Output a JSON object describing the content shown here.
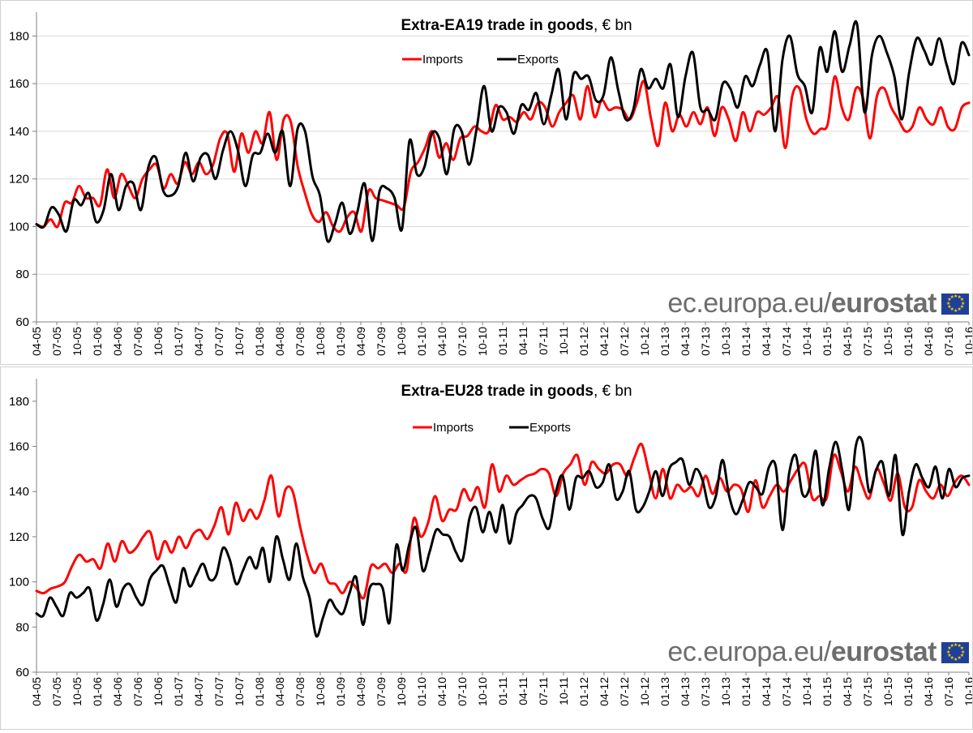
{
  "brand": {
    "plain": "ec.europa.eu/",
    "bold": "eurostat"
  },
  "chart_data": [
    {
      "type": "line",
      "title_bold": "Extra-EA19 trade in goods",
      "title_rest": ", € bn",
      "ylim": [
        60,
        190
      ],
      "yticks": [
        60,
        80,
        100,
        120,
        140,
        160,
        180
      ],
      "grid": true,
      "legend": "top-center",
      "x_tick_labels": [
        "04-05",
        "07-05",
        "10-05",
        "01-06",
        "04-06",
        "07-06",
        "10-06",
        "01-07",
        "04-07",
        "07-07",
        "10-07",
        "01-08",
        "04-08",
        "07-08",
        "10-08",
        "01-09",
        "04-09",
        "07-09",
        "10-09",
        "01-10",
        "04-10",
        "07-10",
        "10-10",
        "01-11",
        "04-11",
        "07-11",
        "10-11",
        "01-12",
        "04-12",
        "07-12",
        "10-12",
        "01-13",
        "04-13",
        "07-13",
        "10-13",
        "01-14",
        "04-14",
        "07-14",
        "10-14",
        "01-15",
        "04-15",
        "07-15",
        "10-15",
        "01-16",
        "04-16",
        "07-16",
        "10-16"
      ],
      "series": [
        {
          "name": "Imports",
          "color": "#ff0000",
          "values": [
            101,
            100,
            103,
            100,
            110,
            110,
            117,
            112,
            112,
            109,
            124,
            112,
            122,
            117,
            112,
            120,
            124,
            126,
            116,
            122,
            118,
            127,
            122,
            127,
            122,
            126,
            137,
            139,
            123,
            139,
            131,
            140,
            135,
            148,
            128,
            145,
            144,
            125,
            114,
            105,
            102,
            106,
            100,
            98,
            104,
            106,
            98,
            115,
            112,
            111,
            110,
            109,
            108,
            123,
            127,
            133,
            140,
            129,
            135,
            128,
            137,
            138,
            142,
            140,
            140,
            151,
            145,
            146,
            144,
            148,
            145,
            152,
            150,
            142,
            148,
            152,
            155,
            145,
            159,
            146,
            153,
            149,
            150,
            149,
            145,
            152,
            161,
            145,
            134,
            152,
            140,
            147,
            142,
            148,
            143,
            150,
            138,
            150,
            145,
            136,
            148,
            140,
            148,
            147,
            150,
            154,
            133,
            155,
            158,
            145,
            139,
            141,
            143,
            163,
            150,
            145,
            158,
            154,
            137,
            155,
            158,
            150,
            145,
            140,
            142,
            150,
            145,
            143,
            150,
            142,
            141,
            150,
            152
          ]
        },
        {
          "name": "Exports",
          "color": "#000000",
          "values": [
            101,
            100,
            108,
            105,
            98,
            111,
            109,
            114,
            102,
            107,
            122,
            107,
            117,
            118,
            107,
            125,
            129,
            115,
            113,
            117,
            131,
            119,
            129,
            130,
            120,
            132,
            140,
            132,
            117,
            130,
            131,
            139,
            131,
            140,
            117,
            141,
            140,
            121,
            113,
            94,
            101,
            110,
            97,
            106,
            118,
            94,
            115,
            116,
            112,
            99,
            136,
            122,
            125,
            139,
            137,
            122,
            141,
            140,
            126,
            141,
            159,
            140,
            150,
            148,
            139,
            151,
            149,
            156,
            143,
            155,
            166,
            145,
            164,
            162,
            163,
            153,
            155,
            171,
            157,
            145,
            149,
            166,
            158,
            162,
            158,
            168,
            146,
            163,
            173,
            150,
            149,
            145,
            160,
            158,
            150,
            163,
            159,
            168,
            173,
            140,
            170,
            180,
            164,
            159,
            148,
            175,
            165,
            182,
            165,
            176,
            185,
            148,
            172,
            180,
            173,
            163,
            145,
            165,
            179,
            174,
            168,
            179,
            168,
            160,
            177,
            172
          ]
        }
      ]
    },
    {
      "type": "line",
      "title_bold": "Extra-EU28 trade in goods",
      "title_rest": ", € bn",
      "ylim": [
        60,
        190
      ],
      "yticks": [
        60,
        80,
        100,
        120,
        140,
        160,
        180
      ],
      "grid": false,
      "legend": "top-center",
      "x_tick_labels": [
        "04-05",
        "07-05",
        "10-05",
        "01-06",
        "04-06",
        "07-06",
        "10-06",
        "01-07",
        "04-07",
        "07-07",
        "10-07",
        "01-08",
        "04-08",
        "07-08",
        "10-08",
        "01-09",
        "04-09",
        "07-09",
        "10-09",
        "01-10",
        "04-10",
        "07-10",
        "10-10",
        "01-11",
        "04-11",
        "07-11",
        "10-11",
        "01-12",
        "04-12",
        "07-12",
        "10-12",
        "01-13",
        "04-13",
        "07-13",
        "10-13",
        "01-14",
        "04-14",
        "07-14",
        "10-14",
        "01-15",
        "04-15",
        "07-15",
        "10-15",
        "01-16",
        "04-16",
        "07-16",
        "10-16"
      ],
      "series": [
        {
          "name": "Imports",
          "color": "#ff0000",
          "values": [
            96,
            95,
            97,
            98,
            100,
            107,
            112,
            109,
            110,
            106,
            117,
            109,
            118,
            113,
            115,
            120,
            122,
            110,
            118,
            113,
            120,
            115,
            121,
            123,
            119,
            125,
            133,
            121,
            135,
            127,
            132,
            128,
            136,
            147,
            129,
            141,
            140,
            125,
            112,
            104,
            108,
            100,
            99,
            95,
            100,
            97,
            93,
            107,
            106,
            108,
            104,
            108,
            105,
            128,
            120,
            126,
            138,
            127,
            132,
            132,
            141,
            136,
            142,
            133,
            152,
            140,
            147,
            143,
            145,
            147,
            148,
            150,
            148,
            138,
            148,
            152,
            156,
            143,
            153,
            150,
            148,
            152,
            152,
            147,
            155,
            161,
            149,
            137,
            150,
            137,
            143,
            140,
            142,
            138,
            147,
            139,
            146,
            140,
            143,
            141,
            131,
            145,
            133,
            138,
            143,
            140,
            145,
            150,
            152,
            137,
            138,
            137,
            156,
            149,
            140,
            151,
            143,
            137,
            150,
            144,
            136,
            148,
            133,
            133,
            145,
            140,
            137,
            143,
            138,
            144,
            147,
            143
          ]
        },
        {
          "name": "Exports",
          "color": "#000000",
          "values": [
            86,
            85,
            93,
            89,
            85,
            95,
            93,
            95,
            97,
            83,
            90,
            101,
            89,
            97,
            99,
            93,
            90,
            101,
            105,
            107,
            98,
            91,
            106,
            98,
            103,
            108,
            101,
            103,
            115,
            110,
            99,
            105,
            111,
            106,
            115,
            100,
            120,
            110,
            101,
            117,
            102,
            93,
            76,
            84,
            92,
            88,
            86,
            95,
            102,
            81,
            97,
            99,
            97,
            82,
            116,
            105,
            117,
            124,
            105,
            113,
            123,
            121,
            120,
            113,
            110,
            128,
            133,
            122,
            131,
            122,
            134,
            117,
            130,
            134,
            138,
            137,
            128,
            124,
            140,
            147,
            132,
            146,
            146,
            149,
            142,
            144,
            152,
            137,
            140,
            149,
            132,
            133,
            140,
            149,
            138,
            150,
            153,
            154,
            143,
            150,
            145,
            133,
            138,
            154,
            138,
            130,
            136,
            144,
            142,
            139,
            151,
            151,
            123,
            148,
            156,
            139,
            141,
            158,
            134,
            150,
            162,
            149,
            132,
            160,
            162,
            140,
            149,
            153,
            138,
            156,
            121,
            140,
            152,
            146,
            142,
            151,
            137,
            150,
            142,
            146,
            147
          ]
        }
      ]
    }
  ]
}
